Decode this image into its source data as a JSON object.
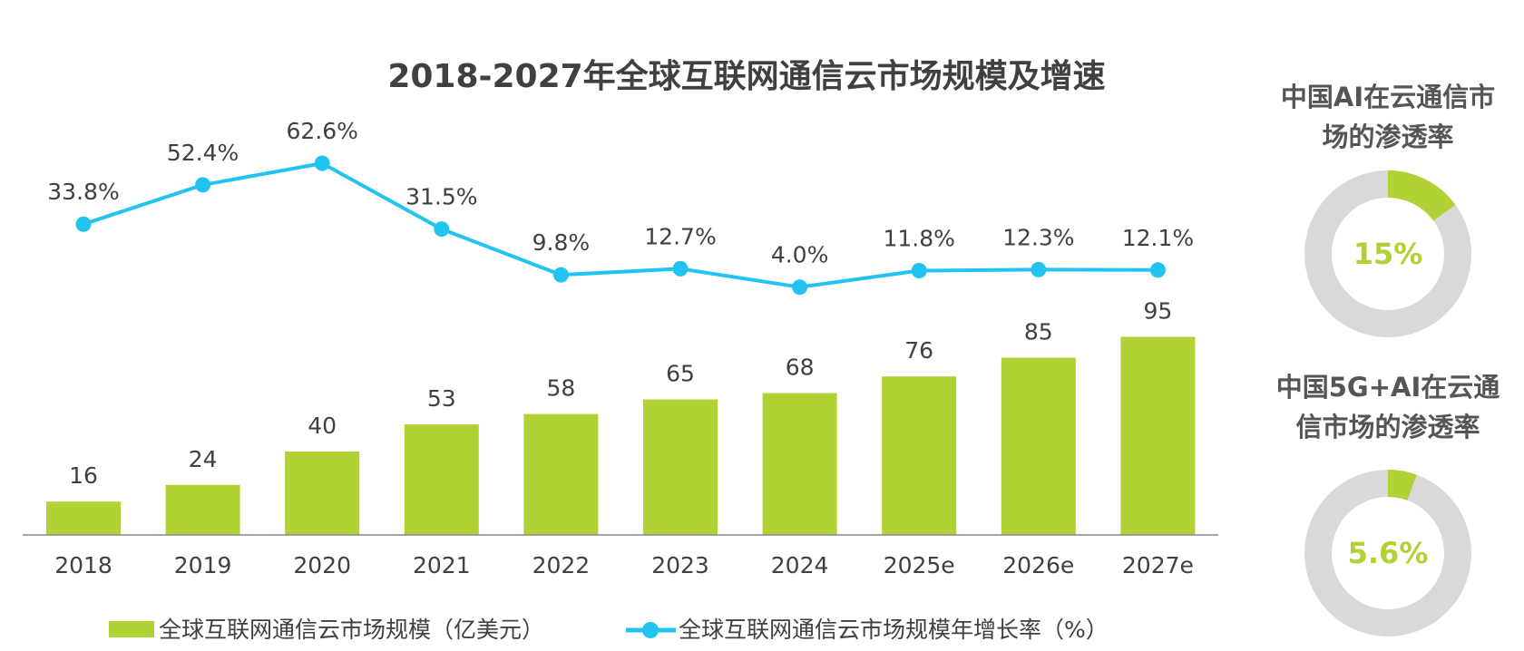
{
  "chart_data": {
    "type": "bar+line",
    "title": "2018-2027年全球互联网通信云市场规模及增速",
    "categories": [
      "2018",
      "2019",
      "2020",
      "2021",
      "2022",
      "2023",
      "2024",
      "2025e",
      "2026e",
      "2027e"
    ],
    "series": [
      {
        "name": "全球互联网通信云市场规模（亿美元）",
        "type": "bar",
        "color": "#B1D234",
        "values": [
          16,
          24,
          40,
          53,
          58,
          65,
          68,
          76,
          85,
          95
        ]
      },
      {
        "name": "全球互联网通信云市场规模年增长率（%）",
        "type": "line",
        "color": "#23C3F0",
        "values": [
          33.8,
          52.4,
          62.6,
          31.5,
          9.8,
          12.7,
          4.0,
          11.8,
          12.3,
          12.1
        ],
        "labels": [
          "33.8%",
          "52.4%",
          "62.6%",
          "31.5%",
          "9.8%",
          "12.7%",
          "4.0%",
          "11.8%",
          "12.3%",
          "12.1%"
        ]
      }
    ],
    "bar_ylim": [
      0,
      100
    ],
    "line_ylim": [
      0,
      70
    ],
    "legend_position": "bottom"
  },
  "donuts": [
    {
      "title_lines": [
        "中国AI在云通信市",
        "场的渗透率"
      ],
      "value": 15,
      "label": "15%",
      "color": "#B1D234",
      "track_color": "#D9D9D9"
    },
    {
      "title_lines": [
        "中国5G+AI在云通",
        "信市场的渗透率"
      ],
      "value": 5.6,
      "label": "5.6%",
      "color": "#B1D234",
      "track_color": "#D9D9D9"
    }
  ]
}
